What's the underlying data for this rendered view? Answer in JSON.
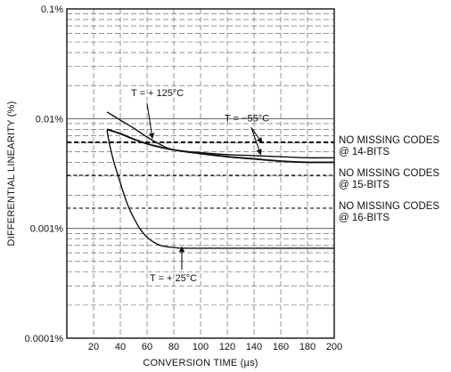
{
  "chart_data": {
    "type": "line",
    "xlabel": "CONVERSION TIME (µs)",
    "ylabel": "DIFFERENTIAL LINEARITY (%)",
    "xlim": [
      0,
      200
    ],
    "ylim": [
      0.0001,
      0.1
    ],
    "y_scale": "log",
    "grid": true,
    "x_ticks": [
      20,
      40,
      60,
      80,
      100,
      120,
      140,
      160,
      180,
      200
    ],
    "y_ticks": [
      {
        "value": 0.1,
        "label": "0.1%"
      },
      {
        "value": 0.01,
        "label": "0.01%"
      },
      {
        "value": 0.001,
        "label": "0.001%"
      },
      {
        "value": 0.0001,
        "label": "0.0001%"
      }
    ],
    "series": [
      {
        "name": "T = +125°C",
        "x": [
          30,
          40,
          50,
          60,
          70,
          80,
          100,
          120,
          140,
          160,
          180,
          200
        ],
        "y": [
          0.0115,
          0.0097,
          0.0082,
          0.0068,
          0.0058,
          0.0052,
          0.0049,
          0.0047,
          0.0046,
          0.0045,
          0.0044,
          0.0044
        ]
      },
      {
        "name": "T = -55°C",
        "x": [
          30,
          40,
          50,
          60,
          70,
          80,
          100,
          120,
          140,
          160,
          180,
          200
        ],
        "y": [
          0.008,
          0.0073,
          0.0065,
          0.0059,
          0.0055,
          0.0052,
          0.0048,
          0.0045,
          0.0043,
          0.0041,
          0.004,
          0.004
        ]
      },
      {
        "name": "T = +25°C",
        "x": [
          30,
          32,
          35,
          40,
          45,
          50,
          55,
          60,
          65,
          70,
          75,
          80,
          85,
          90,
          100,
          120,
          140,
          160,
          180,
          200
        ],
        "y": [
          0.0079,
          0.0058,
          0.0041,
          0.0026,
          0.0017,
          0.00125,
          0.00098,
          0.00083,
          0.00075,
          0.0007,
          0.00068,
          0.00067,
          0.00066,
          0.00066,
          0.00066,
          0.00066,
          0.00066,
          0.00066,
          0.00066,
          0.00066
        ]
      }
    ],
    "reference_lines": [
      {
        "value": 0.0061,
        "style": "dashed-bold",
        "label1": "NO MISSING CODES",
        "label2": "@ 14-BITS"
      },
      {
        "value": 0.00305,
        "style": "dashed",
        "label1": "NO MISSING CODES",
        "label2": "@ 15-BITS"
      },
      {
        "value": 0.00153,
        "style": "dashed",
        "label1": "NO MISSING CODES",
        "label2": "@ 16-BITS"
      }
    ],
    "annotations": [
      {
        "text": "T = + 125°C",
        "x": 48,
        "y": 0.016
      },
      {
        "text": "T = −55°C",
        "x": 118,
        "y": 0.0094
      },
      {
        "text": "T = + 25°C",
        "x": 62,
        "y": 0.00033
      }
    ]
  }
}
